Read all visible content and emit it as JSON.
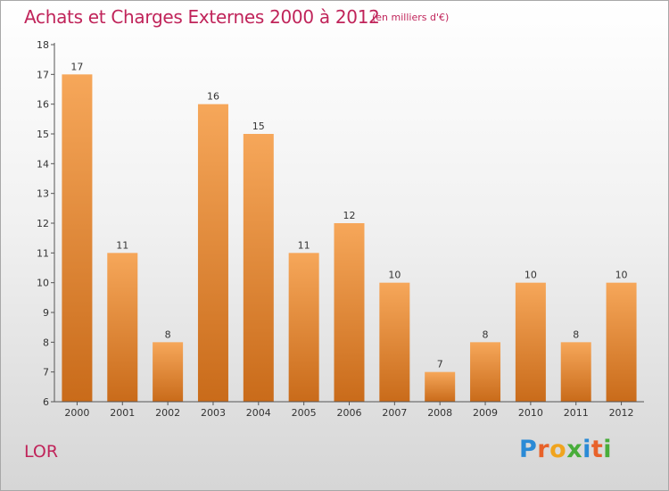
{
  "header": {
    "title": "Achats et Charges Externes 2000 à 2012",
    "subtitle": "(en milliers d'€)"
  },
  "footer": {
    "commune": "LOR",
    "logo_letters": [
      "P",
      "r",
      "o",
      "x",
      "i",
      "t",
      "i"
    ],
    "logo_colors": [
      "#2a8ad6",
      "#e8622a",
      "#f0a41e",
      "#48ad3a",
      "#2a8ad6",
      "#e8622a",
      "#48ad3a"
    ]
  },
  "colors": {
    "accent": "#c0245a",
    "bar_top": "#f6a75a",
    "bar_bottom": "#c96b1a"
  },
  "chart_data": {
    "type": "bar",
    "categories": [
      "2000",
      "2001",
      "2002",
      "2003",
      "2004",
      "2005",
      "2006",
      "2007",
      "2008",
      "2009",
      "2010",
      "2011",
      "2012"
    ],
    "values": [
      17,
      11,
      8,
      16,
      15,
      11,
      12,
      10,
      7,
      8,
      10,
      8,
      10
    ],
    "ylim": [
      6,
      18
    ],
    "yticks": [
      6,
      7,
      8,
      9,
      10,
      11,
      12,
      13,
      14,
      15,
      16,
      17,
      18
    ],
    "grid": false
  }
}
